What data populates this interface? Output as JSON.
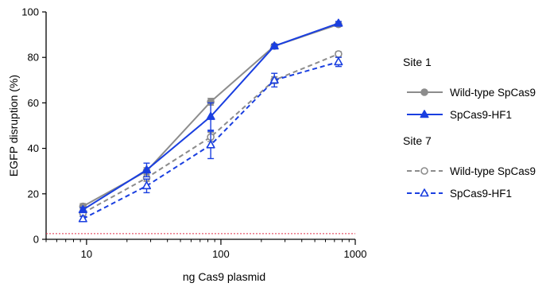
{
  "chart_data": {
    "type": "line",
    "xlabel": "ng Cas9 plasmid",
    "ylabel": "EGFP disruption (%)",
    "xscale": "log",
    "xlim": [
      5,
      1000
    ],
    "ylim": [
      0,
      100
    ],
    "x_ticks": [
      10,
      100,
      1000
    ],
    "x_tick_labels": [
      "10",
      "100",
      "1000"
    ],
    "y_ticks": [
      0,
      20,
      40,
      60,
      80,
      100
    ],
    "y_tick_labels": [
      "0",
      "20",
      "40",
      "60",
      "80",
      "100"
    ],
    "x": [
      9.4,
      28,
      84,
      250,
      750
    ],
    "reference_line": {
      "y": 2.5,
      "color": "#e0304a",
      "style": "dotted"
    },
    "legend": {
      "placement": "right",
      "groups": [
        {
          "heading": "Site 1",
          "entries": [
            0,
            1
          ]
        },
        {
          "heading": "Site 7",
          "entries": [
            2,
            3
          ]
        }
      ]
    },
    "series": [
      {
        "name": "Wild-type SpCas9",
        "group": "Site 1",
        "color": "#8c8c8c",
        "line": "solid",
        "marker": "circle-filled",
        "values": [
          14.5,
          30,
          60.5,
          85,
          94.5
        ],
        "errors": [
          1.2,
          1.5,
          1.5,
          0.8,
          0.8
        ]
      },
      {
        "name": "SpCas9-HF1",
        "group": "Site 1",
        "color": "#1a3fe0",
        "line": "solid",
        "marker": "triangle-filled",
        "values": [
          13,
          30.5,
          54,
          85,
          95
        ],
        "errors": [
          1.0,
          3.0,
          6.0,
          0.8,
          0.8
        ]
      },
      {
        "name": "Wild-type SpCas9",
        "group": "Site 7",
        "color": "#8c8c8c",
        "line": "dashed",
        "marker": "circle-open",
        "values": [
          11.5,
          27,
          45,
          70,
          81.5
        ],
        "errors": [
          1.0,
          1.5,
          2.0,
          1.5,
          1.0
        ]
      },
      {
        "name": "SpCas9-HF1",
        "group": "Site 7",
        "color": "#1a3fe0",
        "line": "dashed",
        "marker": "triangle-open",
        "values": [
          9,
          23.5,
          41.5,
          70,
          78
        ],
        "errors": [
          1.0,
          3.0,
          6.0,
          3.0,
          2.0
        ]
      }
    ]
  }
}
